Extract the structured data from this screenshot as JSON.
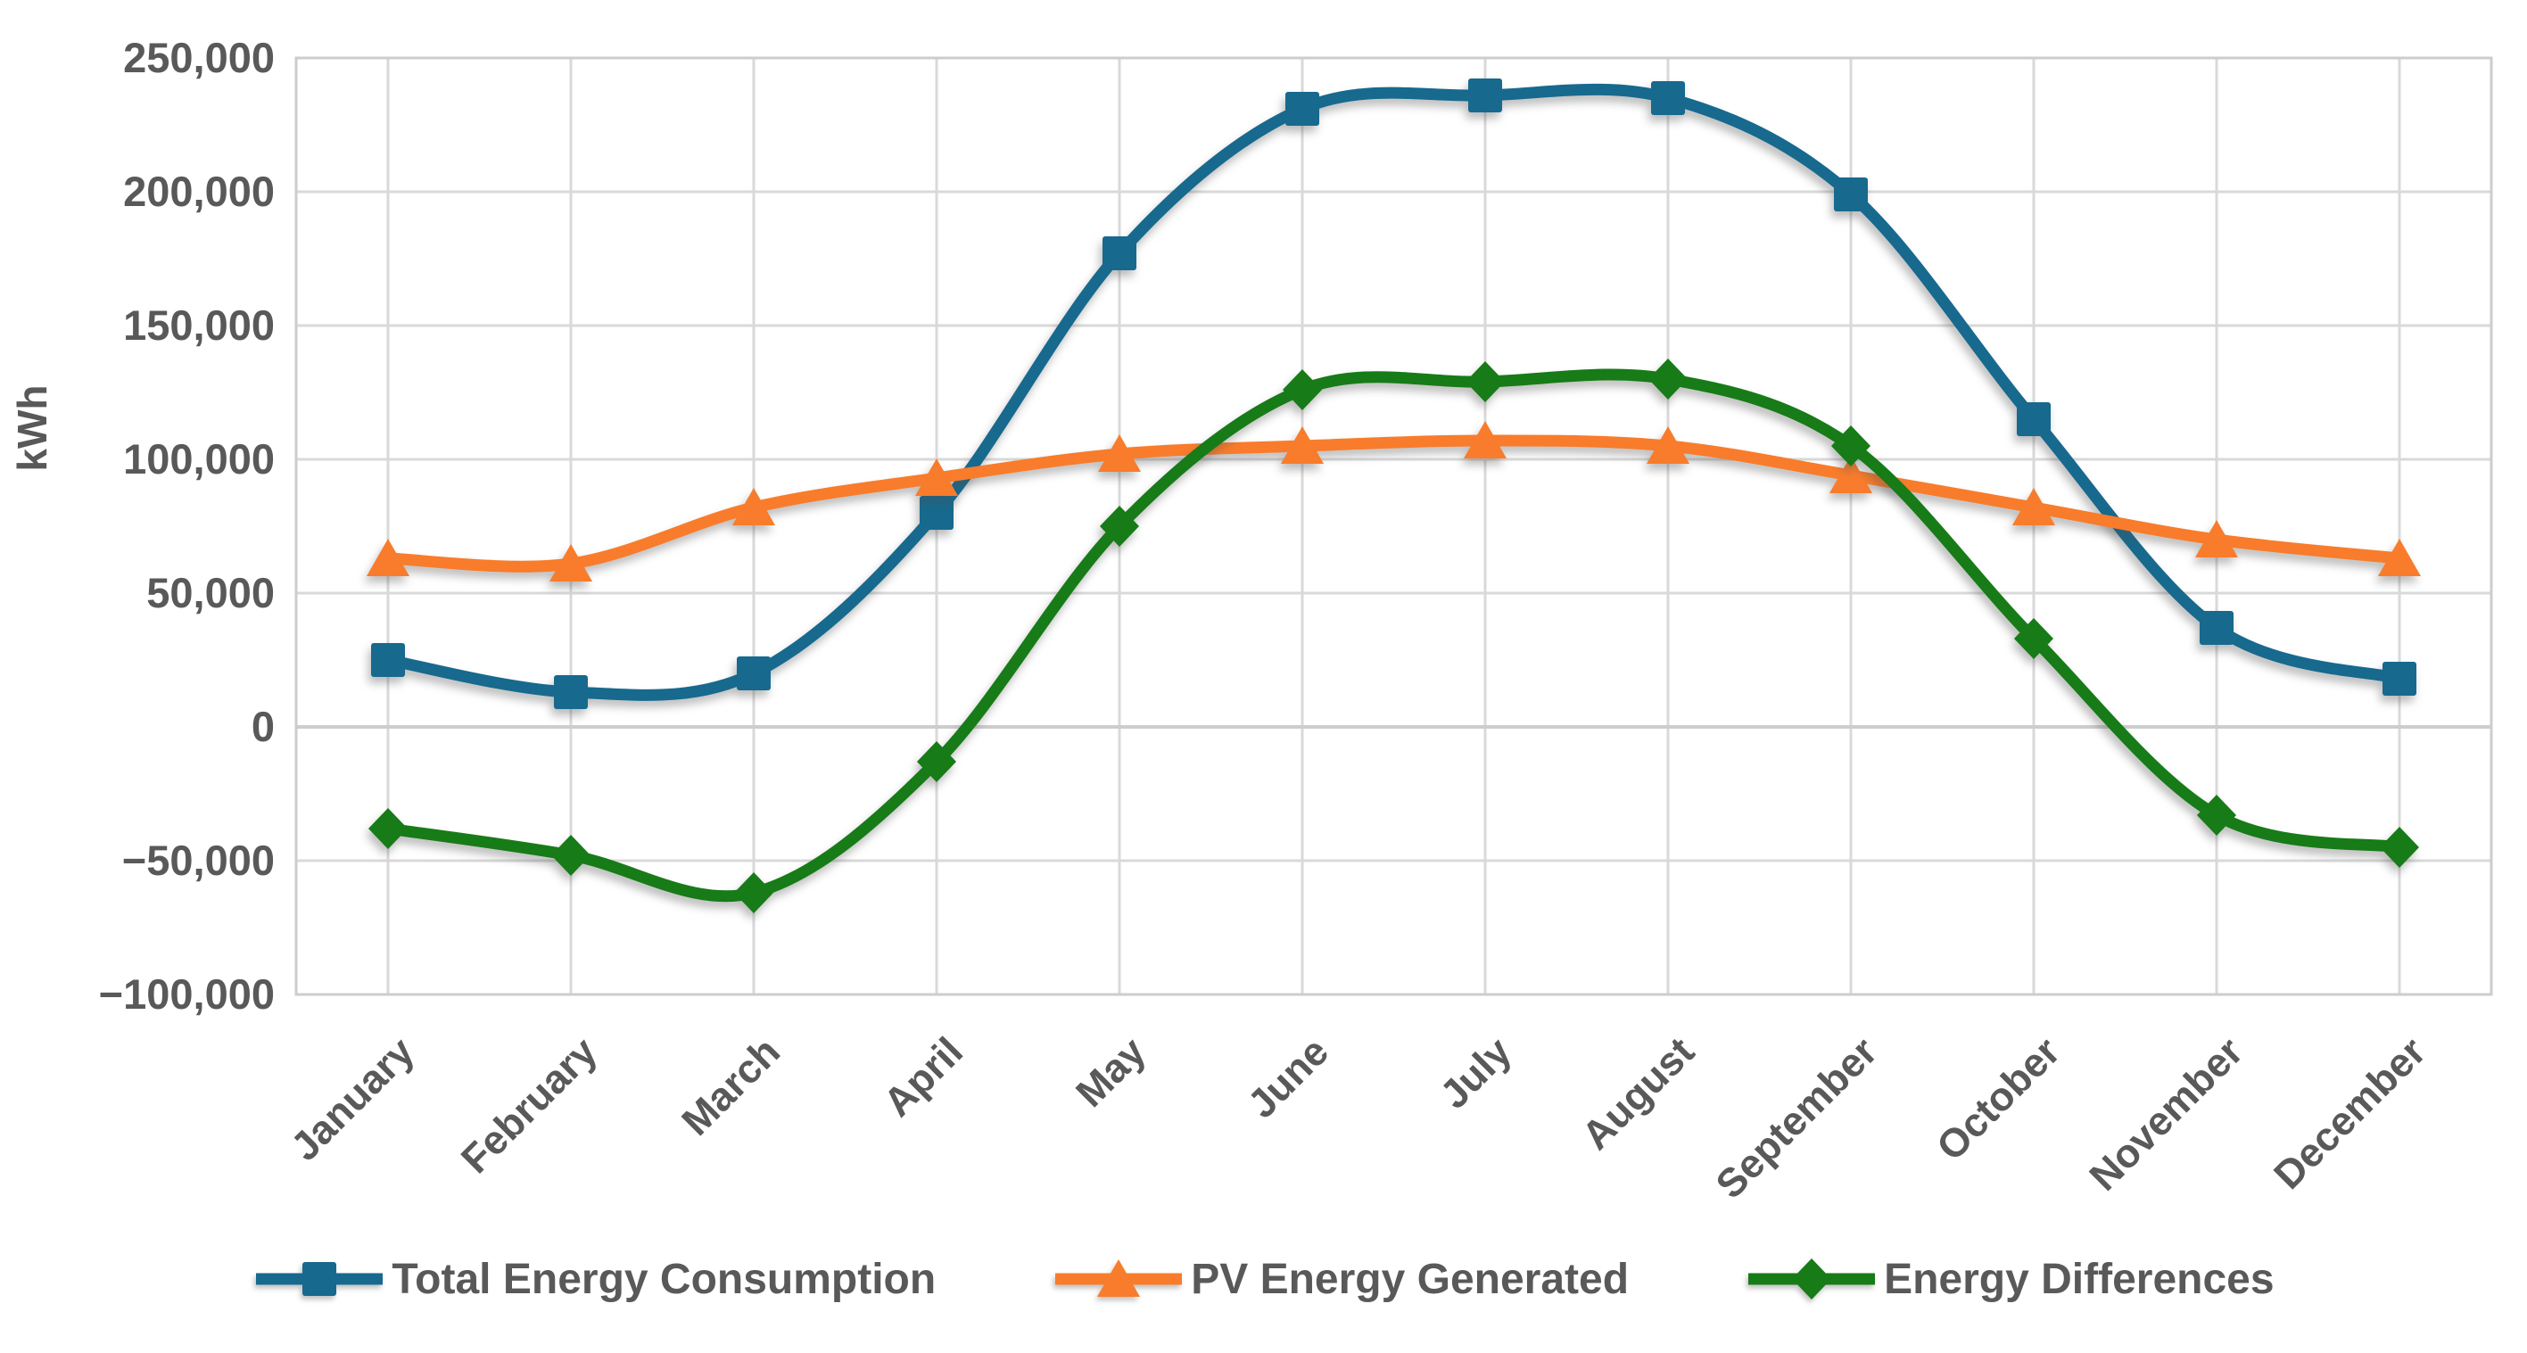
{
  "chart_data": {
    "type": "line",
    "title": "",
    "xlabel": "",
    "ylabel": "kWh",
    "categories": [
      "January",
      "February",
      "March",
      "April",
      "May",
      "June",
      "July",
      "August",
      "September",
      "October",
      "November",
      "December"
    ],
    "series": [
      {
        "name": "Total Energy Consumption",
        "marker": "square",
        "color": "#17698E",
        "values": [
          25000,
          13000,
          20000,
          80000,
          177000,
          231000,
          236000,
          235000,
          199000,
          115000,
          37000,
          18000
        ]
      },
      {
        "name": "PV Energy Generated",
        "marker": "triangle",
        "color": "#F87C2B",
        "values": [
          63000,
          61000,
          82000,
          93000,
          102000,
          105000,
          107000,
          105000,
          94000,
          82000,
          70000,
          63000
        ]
      },
      {
        "name": "Energy Differences",
        "marker": "diamond",
        "color": "#177B17",
        "values": [
          -38000,
          -48000,
          -62000,
          -13000,
          75000,
          126000,
          129000,
          130000,
          105000,
          33000,
          -33000,
          -45000
        ]
      }
    ],
    "ylim": [
      -100000,
      250000
    ],
    "ytick_step": 50000,
    "ytick_labels": [
      "250,000",
      "200,000",
      "150,000",
      "100,000",
      "50,000",
      "0",
      "−50,000",
      "−100,000"
    ],
    "grid": true,
    "legend_position": "bottom",
    "line_smoothing": true
  },
  "colors": {
    "gridline": "#D9D9D9",
    "plot_border": "#CDCDCD",
    "text": "#595959",
    "background": "#FFFFFF"
  }
}
